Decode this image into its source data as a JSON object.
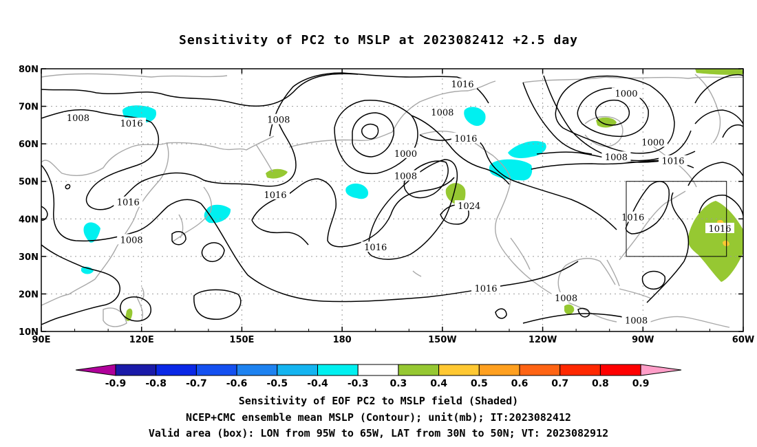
{
  "title": "Sensitivity of PC2 to MSLP at 2023082412 +2.5 day",
  "map": {
    "lon_range": [
      90,
      300
    ],
    "lat_range": [
      10,
      80
    ],
    "lat_ticks": [
      {
        "value": 80,
        "label": "80N"
      },
      {
        "value": 70,
        "label": "70N"
      },
      {
        "value": 60,
        "label": "60N"
      },
      {
        "value": 50,
        "label": "50N"
      },
      {
        "value": 40,
        "label": "40N"
      },
      {
        "value": 30,
        "label": "30N"
      },
      {
        "value": 20,
        "label": "20N"
      },
      {
        "value": 10,
        "label": "10N"
      }
    ],
    "lon_ticks": [
      {
        "value": 90,
        "label": "90E"
      },
      {
        "value": 120,
        "label": "120E"
      },
      {
        "value": 150,
        "label": "150E"
      },
      {
        "value": 180,
        "label": "180"
      },
      {
        "value": 210,
        "label": "150W"
      },
      {
        "value": 240,
        "label": "120W"
      },
      {
        "value": 270,
        "label": "90W"
      },
      {
        "value": 300,
        "label": "60W"
      }
    ],
    "valid_box": {
      "lon_min": 265,
      "lon_max": 295,
      "lat_min": 30,
      "lat_max": 50
    },
    "contour_labels": [
      {
        "text": "1016",
        "lon": 216,
        "lat": 76
      },
      {
        "text": "1008",
        "lon": 210,
        "lat": 68.5
      },
      {
        "text": "1008",
        "lon": 101,
        "lat": 67
      },
      {
        "text": "1016",
        "lon": 117,
        "lat": 65.5
      },
      {
        "text": "1008",
        "lon": 161,
        "lat": 66.5
      },
      {
        "text": "1000",
        "lon": 265,
        "lat": 73.5
      },
      {
        "text": "1016",
        "lon": 217,
        "lat": 61.5
      },
      {
        "text": "1000",
        "lon": 199,
        "lat": 57.5
      },
      {
        "text": "1000",
        "lon": 273,
        "lat": 60.5
      },
      {
        "text": "1008",
        "lon": 262,
        "lat": 56.5
      },
      {
        "text": "1016",
        "lon": 279,
        "lat": 55.5
      },
      {
        "text": "1008",
        "lon": 199,
        "lat": 51.5
      },
      {
        "text": "1016",
        "lon": 116,
        "lat": 44.5
      },
      {
        "text": "1016",
        "lon": 160,
        "lat": 46.5
      },
      {
        "text": "1024",
        "lon": 218,
        "lat": 43.5
      },
      {
        "text": "1016",
        "lon": 267,
        "lat": 40.5
      },
      {
        "text": "1016",
        "lon": 293,
        "lat": 37.5
      },
      {
        "text": "1008",
        "lon": 117,
        "lat": 34.5
      },
      {
        "text": "1016",
        "lon": 190,
        "lat": 32.5
      },
      {
        "text": "1016",
        "lon": 223,
        "lat": 21.5
      },
      {
        "text": "1008",
        "lon": 247,
        "lat": 19
      },
      {
        "text": "1008",
        "lon": 268,
        "lat": 13
      }
    ]
  },
  "colorbar": {
    "labels": [
      "-0.9",
      "-0.8",
      "-0.7",
      "-0.6",
      "-0.5",
      "-0.4",
      "-0.3",
      "0.3",
      "0.4",
      "0.5",
      "0.6",
      "0.7",
      "0.8",
      "0.9"
    ],
    "colors": [
      "#b0009a",
      "#1a1aa8",
      "#0a28e6",
      "#1450f0",
      "#1e82f0",
      "#14b4f0",
      "#00f0f0",
      "#ffffff",
      "#96c832",
      "#ffc832",
      "#ffa020",
      "#ff6414",
      "#ff2800",
      "#ff0000",
      "#ff9ec8"
    ]
  },
  "captions": {
    "line1": "Sensitivity of EOF PC2 to MSLP field (Shaded)",
    "line2": "NCEP+CMC ensemble mean MSLP (Contour); unit(mb); IT:2023082412",
    "line3": "Valid area (box): LON from 95W to 65W, LAT from 30N to 50N; VT: 2023082912"
  }
}
